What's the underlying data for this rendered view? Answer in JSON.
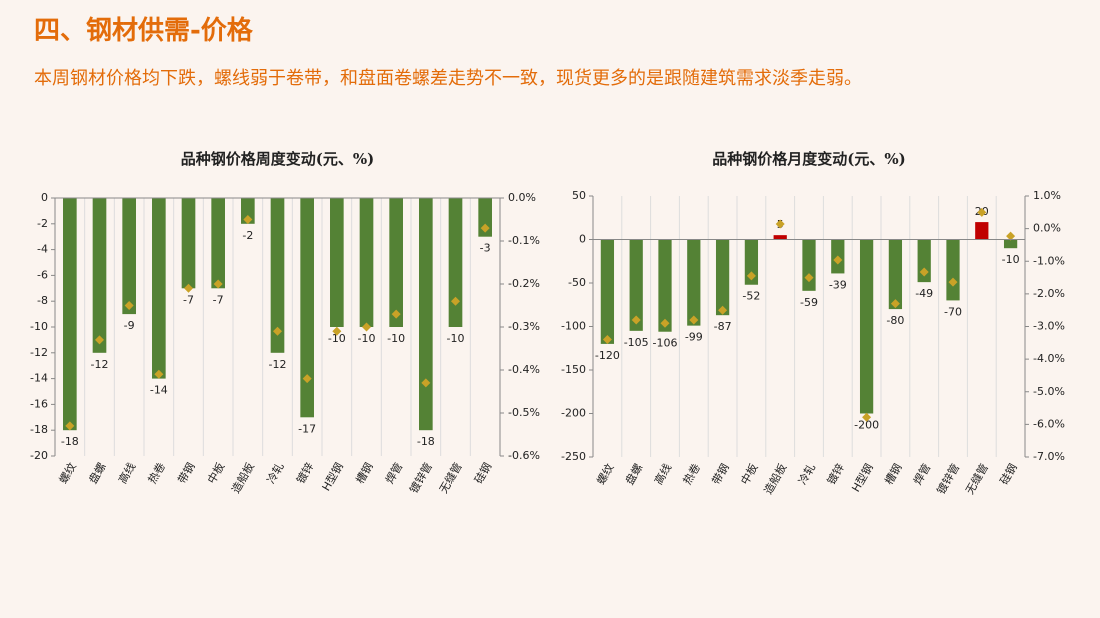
{
  "header": {
    "title": "四、钢材供需-价格",
    "subtitle": "本周钢材价格均下跌，螺线弱于卷带，和盘面卷螺差走势不一致，现货更多的是跟随建筑需求淡季走弱。"
  },
  "chart_data": [
    {
      "type": "bar",
      "title": "品种钢价格周度变动(元、%)",
      "categories": [
        "螺纹",
        "盘螺",
        "高线",
        "热卷",
        "带钢",
        "中板",
        "造船板",
        "冷轧",
        "镀锌",
        "H型钢",
        "槽钢",
        "焊管",
        "镀锌管",
        "无缝管",
        "硅钢"
      ],
      "series": [
        {
          "values": [
            -18,
            -12,
            -9,
            -14,
            -7,
            -7,
            -2,
            -12,
            -17,
            -10,
            -10,
            -10,
            -18,
            -10,
            -3
          ],
          "color": "#548235",
          "positive_color": "#c00000"
        },
        {
          "values": [
            -0.53,
            -0.33,
            -0.25,
            -0.41,
            -0.21,
            -0.2,
            -0.05,
            -0.31,
            -0.42,
            -0.31,
            -0.3,
            -0.27,
            -0.43,
            -0.24,
            -0.07
          ],
          "axis": "y2",
          "color": "#c9a227",
          "marker": "diamond"
        }
      ],
      "ylim": [
        -20,
        0
      ],
      "yticks": [
        0,
        -2,
        -4,
        -6,
        -8,
        -10,
        -12,
        -14,
        -16,
        -18,
        -20
      ],
      "y2lim": [
        -0.6,
        0
      ],
      "y2ticks": [
        {
          "value": 0,
          "label": "0.0%"
        },
        {
          "value": -0.1,
          "label": "-0.1%"
        },
        {
          "value": -0.2,
          "label": "-0.2%"
        },
        {
          "value": -0.3,
          "label": "-0.3%"
        },
        {
          "value": -0.4,
          "label": "-0.4%"
        },
        {
          "value": -0.5,
          "label": "-0.5%"
        },
        {
          "value": -0.6,
          "label": "-0.6%"
        }
      ]
    },
    {
      "type": "bar",
      "title": "品种钢价格月度变动(元、%)",
      "categories": [
        "螺纹",
        "盘螺",
        "高线",
        "热卷",
        "带钢",
        "中板",
        "造船板",
        "冷轧",
        "镀锌",
        "H型钢",
        "槽钢",
        "焊管",
        "镀锌管",
        "无缝管",
        "硅钢"
      ],
      "series": [
        {
          "values": [
            -120,
            -105,
            -106,
            -99,
            -87,
            -52,
            5,
            -59,
            -39,
            -200,
            -80,
            -49,
            -70,
            20,
            -10
          ],
          "color": "#548235",
          "positive_color": "#c00000"
        },
        {
          "values": [
            -3.4,
            -2.8,
            -2.9,
            -2.8,
            -2.5,
            -1.45,
            0.14,
            -1.5,
            -0.96,
            -5.78,
            -2.3,
            -1.33,
            -1.64,
            0.5,
            -0.23
          ],
          "axis": "y2",
          "color": "#c9a227",
          "marker": "diamond"
        }
      ],
      "ylim": [
        -250,
        50
      ],
      "yticks": [
        50,
        0,
        -50,
        -100,
        -150,
        -200,
        -250
      ],
      "y2lim": [
        -7,
        1
      ],
      "y2ticks": [
        {
          "value": 1,
          "label": "1.0%"
        },
        {
          "value": 0,
          "label": "0.0%"
        },
        {
          "value": -1,
          "label": "-1.0%"
        },
        {
          "value": -2,
          "label": "-2.0%"
        },
        {
          "value": -3,
          "label": "-3.0%"
        },
        {
          "value": -4,
          "label": "-4.0%"
        },
        {
          "value": -5,
          "label": "-5.0%"
        },
        {
          "value": -6,
          "label": "-6.0%"
        },
        {
          "value": -7,
          "label": "-7.0%"
        }
      ]
    }
  ]
}
